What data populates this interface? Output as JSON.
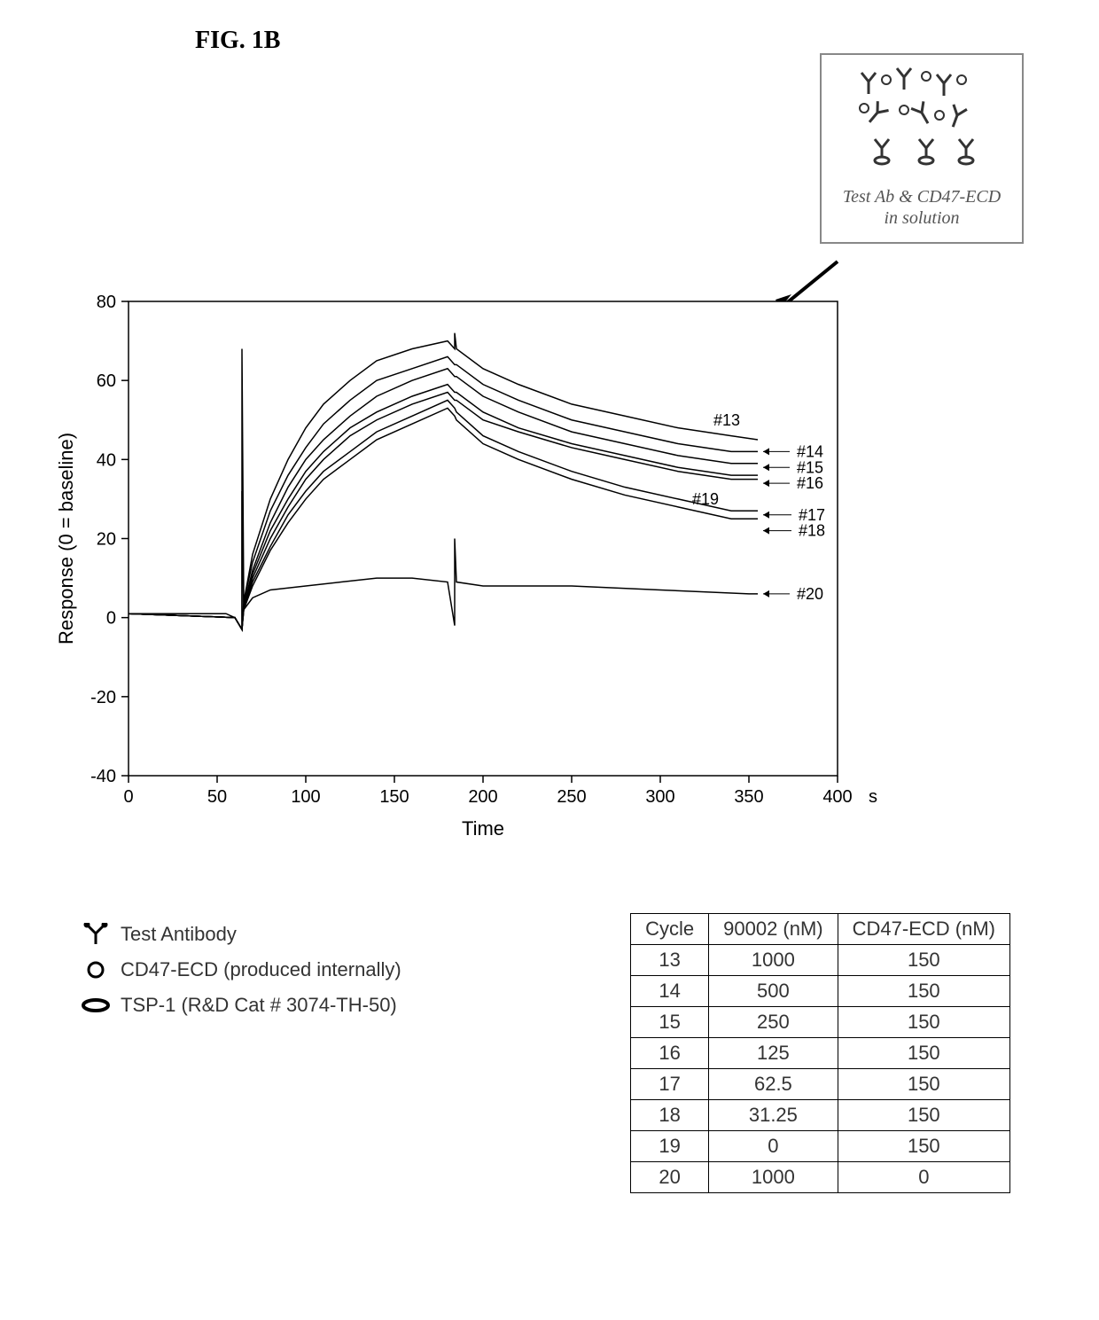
{
  "figure_label": "FIG. 1B",
  "callout": {
    "line1": "Test Ab & CD47-ECD",
    "line2": "in solution"
  },
  "chart": {
    "type": "line",
    "x_label": "Time",
    "x_unit": "s",
    "y_label": "Response (0 = baseline)",
    "xlim": [
      0,
      400
    ],
    "ylim": [
      -40,
      80
    ],
    "xtick_step": 50,
    "ytick_step": 20,
    "xticks": [
      0,
      50,
      100,
      150,
      200,
      250,
      300,
      350,
      400
    ],
    "yticks": [
      -40,
      -20,
      0,
      20,
      40,
      60,
      80
    ],
    "line_color": "#000000",
    "line_width": 1.5,
    "background_color": "#ffffff",
    "axis_color": "#000000",
    "tick_fontsize": 20,
    "label_fontsize": 22,
    "spike_x": [
      64,
      184
    ],
    "series": [
      {
        "id": "13",
        "label": "#13",
        "end_y": 45,
        "points": [
          [
            0,
            1
          ],
          [
            30,
            1
          ],
          [
            55,
            1
          ],
          [
            60,
            0
          ],
          [
            64,
            -3
          ],
          [
            64,
            68
          ],
          [
            65,
            4
          ],
          [
            70,
            16
          ],
          [
            80,
            30
          ],
          [
            90,
            40
          ],
          [
            100,
            48
          ],
          [
            110,
            54
          ],
          [
            125,
            60
          ],
          [
            140,
            65
          ],
          [
            160,
            68
          ],
          [
            180,
            70
          ],
          [
            184,
            68
          ],
          [
            184,
            72
          ],
          [
            185,
            68
          ],
          [
            200,
            63
          ],
          [
            220,
            59
          ],
          [
            250,
            54
          ],
          [
            280,
            51
          ],
          [
            310,
            48
          ],
          [
            340,
            46
          ],
          [
            355,
            45
          ]
        ]
      },
      {
        "id": "14",
        "label": "#14",
        "end_y": 42,
        "points": [
          [
            0,
            1
          ],
          [
            60,
            0
          ],
          [
            64,
            -3
          ],
          [
            65,
            4
          ],
          [
            70,
            14
          ],
          [
            80,
            27
          ],
          [
            90,
            36
          ],
          [
            100,
            43
          ],
          [
            110,
            49
          ],
          [
            125,
            55
          ],
          [
            140,
            60
          ],
          [
            160,
            63
          ],
          [
            180,
            66
          ],
          [
            184,
            64
          ],
          [
            185,
            64
          ],
          [
            200,
            59
          ],
          [
            220,
            55
          ],
          [
            250,
            50
          ],
          [
            280,
            47
          ],
          [
            310,
            44
          ],
          [
            340,
            42
          ],
          [
            355,
            42
          ]
        ]
      },
      {
        "id": "15",
        "label": "#15",
        "end_y": 39,
        "points": [
          [
            0,
            1
          ],
          [
            60,
            0
          ],
          [
            64,
            -3
          ],
          [
            65,
            3
          ],
          [
            70,
            12
          ],
          [
            80,
            24
          ],
          [
            90,
            33
          ],
          [
            100,
            40
          ],
          [
            110,
            45
          ],
          [
            125,
            51
          ],
          [
            140,
            56
          ],
          [
            160,
            60
          ],
          [
            180,
            63
          ],
          [
            184,
            61
          ],
          [
            185,
            61
          ],
          [
            200,
            56
          ],
          [
            220,
            52
          ],
          [
            250,
            47
          ],
          [
            280,
            44
          ],
          [
            310,
            41
          ],
          [
            340,
            39
          ],
          [
            355,
            39
          ]
        ]
      },
      {
        "id": "16",
        "label": "#16",
        "end_y": 36,
        "points": [
          [
            0,
            1
          ],
          [
            60,
            0
          ],
          [
            64,
            -3
          ],
          [
            65,
            3
          ],
          [
            70,
            11
          ],
          [
            80,
            22
          ],
          [
            90,
            30
          ],
          [
            100,
            37
          ],
          [
            110,
            42
          ],
          [
            125,
            48
          ],
          [
            140,
            52
          ],
          [
            160,
            56
          ],
          [
            180,
            59
          ],
          [
            184,
            57
          ],
          [
            185,
            57
          ],
          [
            200,
            52
          ],
          [
            220,
            48
          ],
          [
            250,
            44
          ],
          [
            280,
            41
          ],
          [
            310,
            38
          ],
          [
            340,
            36
          ],
          [
            355,
            36
          ]
        ]
      },
      {
        "id": "17",
        "label": "#17",
        "end_y": 35,
        "points": [
          [
            0,
            1
          ],
          [
            60,
            0
          ],
          [
            64,
            -3
          ],
          [
            65,
            2
          ],
          [
            70,
            10
          ],
          [
            80,
            20
          ],
          [
            90,
            28
          ],
          [
            100,
            35
          ],
          [
            110,
            40
          ],
          [
            125,
            46
          ],
          [
            140,
            50
          ],
          [
            160,
            54
          ],
          [
            180,
            57
          ],
          [
            184,
            55
          ],
          [
            185,
            55
          ],
          [
            200,
            50
          ],
          [
            220,
            47
          ],
          [
            250,
            43
          ],
          [
            280,
            40
          ],
          [
            310,
            37
          ],
          [
            340,
            35
          ],
          [
            355,
            35
          ]
        ]
      },
      {
        "id": "18",
        "label": "#18",
        "end_y": 27,
        "points": [
          [
            0,
            1
          ],
          [
            60,
            0
          ],
          [
            64,
            -3
          ],
          [
            65,
            2
          ],
          [
            70,
            9
          ],
          [
            80,
            18
          ],
          [
            90,
            26
          ],
          [
            100,
            32
          ],
          [
            110,
            37
          ],
          [
            125,
            42
          ],
          [
            140,
            47
          ],
          [
            160,
            51
          ],
          [
            180,
            55
          ],
          [
            184,
            53
          ],
          [
            185,
            52
          ],
          [
            200,
            46
          ],
          [
            220,
            42
          ],
          [
            250,
            37
          ],
          [
            280,
            33
          ],
          [
            310,
            30
          ],
          [
            340,
            27
          ],
          [
            355,
            27
          ]
        ]
      },
      {
        "id": "19",
        "label": "#19",
        "end_y": 25,
        "points": [
          [
            0,
            1
          ],
          [
            60,
            0
          ],
          [
            64,
            -3
          ],
          [
            65,
            2
          ],
          [
            70,
            8
          ],
          [
            80,
            17
          ],
          [
            90,
            24
          ],
          [
            100,
            30
          ],
          [
            110,
            35
          ],
          [
            125,
            40
          ],
          [
            140,
            45
          ],
          [
            160,
            49
          ],
          [
            180,
            53
          ],
          [
            184,
            51
          ],
          [
            185,
            50
          ],
          [
            200,
            44
          ],
          [
            220,
            40
          ],
          [
            250,
            35
          ],
          [
            280,
            31
          ],
          [
            310,
            28
          ],
          [
            340,
            25
          ],
          [
            355,
            25
          ]
        ]
      },
      {
        "id": "20",
        "label": "#20",
        "end_y": 6,
        "points": [
          [
            0,
            1
          ],
          [
            60,
            0
          ],
          [
            64,
            -3
          ],
          [
            64,
            32
          ],
          [
            65,
            2
          ],
          [
            70,
            5
          ],
          [
            80,
            7
          ],
          [
            100,
            8
          ],
          [
            120,
            9
          ],
          [
            140,
            10
          ],
          [
            160,
            10
          ],
          [
            180,
            9
          ],
          [
            184,
            -2
          ],
          [
            184,
            20
          ],
          [
            185,
            9
          ],
          [
            200,
            8
          ],
          [
            250,
            8
          ],
          [
            300,
            7
          ],
          [
            350,
            6
          ],
          [
            355,
            6
          ]
        ]
      }
    ],
    "curve_end_labels": [
      {
        "id": "13",
        "x": 330,
        "y": 50
      },
      {
        "id": "19",
        "x": 318,
        "y": 30
      },
      {
        "id": "14",
        "x": 377,
        "y": 42
      },
      {
        "id": "15",
        "x": 377,
        "y": 38
      },
      {
        "id": "16",
        "x": 377,
        "y": 34
      },
      {
        "id": "17",
        "x": 378,
        "y": 26
      },
      {
        "id": "18",
        "x": 378,
        "y": 22
      },
      {
        "id": "20",
        "x": 377,
        "y": 6
      }
    ]
  },
  "legend": [
    {
      "symbol": "antibody",
      "label": "Test Antibody"
    },
    {
      "symbol": "circle",
      "label": "CD47-ECD (produced internally)"
    },
    {
      "symbol": "ellipse",
      "label": "TSP-1 (R&D Cat # 3074-TH-50)"
    }
  ],
  "table": {
    "columns": [
      "Cycle",
      "90002 (nM)",
      "CD47-ECD (nM)"
    ],
    "rows": [
      [
        "13",
        "1000",
        "150"
      ],
      [
        "14",
        "500",
        "150"
      ],
      [
        "15",
        "250",
        "150"
      ],
      [
        "16",
        "125",
        "150"
      ],
      [
        "17",
        "62.5",
        "150"
      ],
      [
        "18",
        "31.25",
        "150"
      ],
      [
        "19",
        "0",
        "150"
      ],
      [
        "20",
        "1000",
        "0"
      ]
    ]
  }
}
